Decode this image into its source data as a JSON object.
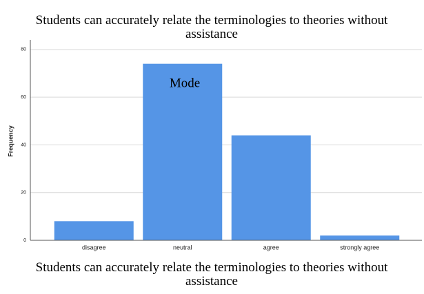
{
  "chart_data": {
    "type": "bar",
    "title": "Students can accurately relate the terminologies to theories without assistance",
    "x_label": "Students can accurately relate the terminologies to theories without assistance",
    "y_label": "Frequency",
    "categories": [
      "disagree",
      "neutral",
      "agree",
      "strongly agree"
    ],
    "values": [
      8,
      74,
      44,
      2
    ],
    "color": "#5595e6",
    "ylim": [
      0,
      84
    ],
    "yticks": [
      0,
      20,
      40,
      60,
      80
    ],
    "grid": true,
    "annotations": [
      {
        "text": "Mode"
      }
    ]
  }
}
